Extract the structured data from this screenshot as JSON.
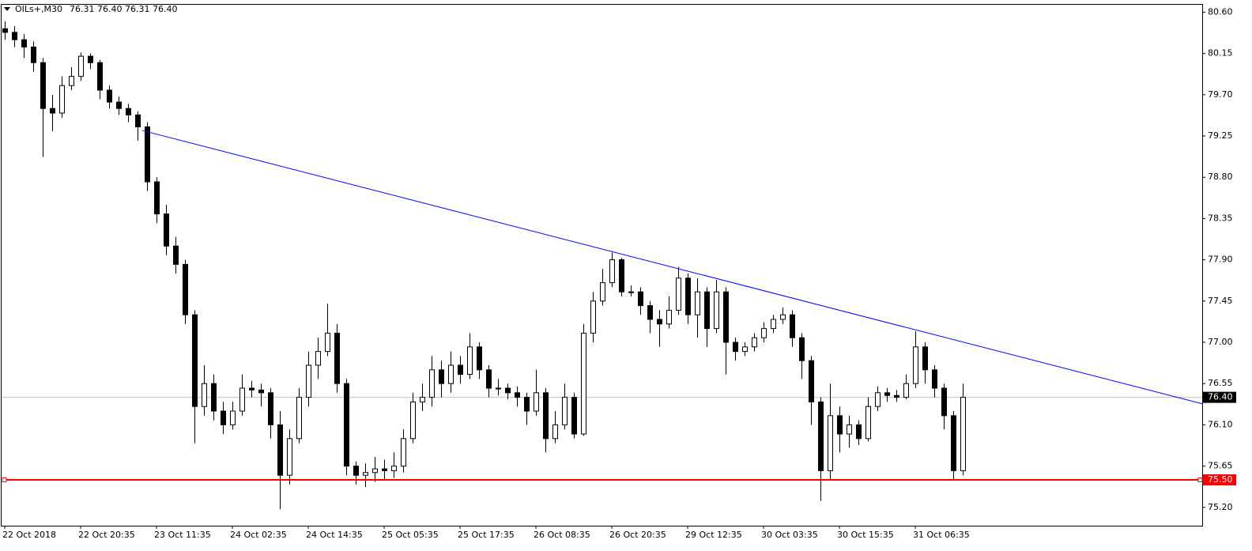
{
  "chart_data": {
    "type": "candlestick",
    "symbol": "OILs+,M30",
    "quote": "76.31 76.40 76.31 76.40",
    "open": [
      80.42,
      80.38,
      80.3,
      80.22,
      80.05,
      79.55,
      79.5,
      79.8,
      79.9,
      80.12,
      80.05,
      79.75,
      79.62,
      79.55,
      79.48,
      79.35,
      78.75,
      78.4,
      78.05,
      77.85,
      77.3,
      76.3,
      76.55,
      76.25,
      76.1,
      76.25,
      76.5,
      76.48,
      76.45,
      76.1,
      75.55,
      75.95,
      76.4,
      76.75,
      76.9,
      77.1,
      76.55,
      75.65,
      75.55,
      75.58,
      75.62,
      75.6,
      75.65,
      75.95,
      76.35,
      76.4,
      76.7,
      76.55,
      76.75,
      76.65,
      76.95,
      76.7,
      76.5,
      76.5,
      76.45,
      76.4,
      76.25,
      76.45,
      75.95,
      76.1,
      76.4,
      76.0,
      77.1,
      77.45,
      77.65,
      77.9,
      77.55,
      77.55,
      77.4,
      77.25,
      77.2,
      77.35,
      77.7,
      77.3,
      77.55,
      77.15,
      77.55,
      77.0,
      76.9,
      76.95,
      77.05,
      77.15,
      77.25,
      77.3,
      77.05,
      76.8,
      76.35,
      75.6,
      76.2,
      76.0,
      76.1,
      75.95,
      76.3,
      76.45,
      76.42,
      76.4,
      76.55,
      76.95,
      76.7,
      76.5,
      76.2,
      75.6
    ],
    "high": [
      80.5,
      80.45,
      80.36,
      80.28,
      80.1,
      79.7,
      79.9,
      80.0,
      80.16,
      80.15,
      80.08,
      79.8,
      79.68,
      79.6,
      79.52,
      79.4,
      78.8,
      78.5,
      78.15,
      77.9,
      77.35,
      76.75,
      76.65,
      76.35,
      76.35,
      76.65,
      76.58,
      76.55,
      76.5,
      76.25,
      76.05,
      76.5,
      76.9,
      77.05,
      77.42,
      77.2,
      76.6,
      75.7,
      75.68,
      75.75,
      75.72,
      75.8,
      76.05,
      76.45,
      76.55,
      76.85,
      76.8,
      76.9,
      76.85,
      77.1,
      77.0,
      76.75,
      76.6,
      76.55,
      76.52,
      76.45,
      76.7,
      76.5,
      76.25,
      76.55,
      76.45,
      77.2,
      77.55,
      77.8,
      77.98,
      77.92,
      77.62,
      77.6,
      77.45,
      77.35,
      77.5,
      77.82,
      77.75,
      77.7,
      77.6,
      77.68,
      77.6,
      77.05,
      77.0,
      77.1,
      77.22,
      77.3,
      77.38,
      77.35,
      77.1,
      76.85,
      76.4,
      76.55,
      76.3,
      76.2,
      76.15,
      76.4,
      76.52,
      76.5,
      76.48,
      76.65,
      77.12,
      77.0,
      76.75,
      76.55,
      76.25,
      76.55
    ],
    "low": [
      80.3,
      80.22,
      80.1,
      79.95,
      79.02,
      79.3,
      79.45,
      79.75,
      79.85,
      79.98,
      79.65,
      79.55,
      79.48,
      79.4,
      79.2,
      78.65,
      78.3,
      77.95,
      77.75,
      77.2,
      75.9,
      76.2,
      76.15,
      76.0,
      76.05,
      76.2,
      76.4,
      76.3,
      75.95,
      75.18,
      75.45,
      75.9,
      76.3,
      76.6,
      76.85,
      76.45,
      75.55,
      75.45,
      75.42,
      75.48,
      75.5,
      75.52,
      75.58,
      75.9,
      76.25,
      76.3,
      76.4,
      76.45,
      76.55,
      76.6,
      76.6,
      76.4,
      76.42,
      76.38,
      76.3,
      76.1,
      76.2,
      75.8,
      75.9,
      76.05,
      75.95,
      75.98,
      77.0,
      77.4,
      77.6,
      77.5,
      77.5,
      77.3,
      77.1,
      76.95,
      77.15,
      77.3,
      77.2,
      77.05,
      76.95,
      77.1,
      76.65,
      76.8,
      76.85,
      76.9,
      77.0,
      77.1,
      77.2,
      76.95,
      76.6,
      76.1,
      75.27,
      75.5,
      75.8,
      75.85,
      75.88,
      75.92,
      76.25,
      76.35,
      76.35,
      76.38,
      76.5,
      76.55,
      76.4,
      76.05,
      75.5,
      75.55
    ],
    "close": [
      80.38,
      80.3,
      80.22,
      80.05,
      79.55,
      79.5,
      79.8,
      79.9,
      80.12,
      80.05,
      79.75,
      79.62,
      79.55,
      79.48,
      79.35,
      78.75,
      78.4,
      78.05,
      77.85,
      77.3,
      76.3,
      76.55,
      76.25,
      76.1,
      76.25,
      76.5,
      76.48,
      76.45,
      76.1,
      75.55,
      75.95,
      76.4,
      76.75,
      76.9,
      77.1,
      76.55,
      75.65,
      75.55,
      75.58,
      75.62,
      75.6,
      75.65,
      75.95,
      76.35,
      76.4,
      76.7,
      76.55,
      76.75,
      76.65,
      76.95,
      76.7,
      76.5,
      76.5,
      76.45,
      76.4,
      76.25,
      76.45,
      75.95,
      76.1,
      76.4,
      76.0,
      77.1,
      77.45,
      77.65,
      77.9,
      77.55,
      77.55,
      77.4,
      77.25,
      77.2,
      77.35,
      77.7,
      77.3,
      77.55,
      77.15,
      77.55,
      77.0,
      76.9,
      76.95,
      77.05,
      77.15,
      77.25,
      77.3,
      77.05,
      76.8,
      76.35,
      75.6,
      76.2,
      76.0,
      76.1,
      75.95,
      76.3,
      76.45,
      76.42,
      76.4,
      76.55,
      76.95,
      76.7,
      76.5,
      76.2,
      75.6,
      76.4
    ],
    "up_color": "#ffffff",
    "down_color": "#000000",
    "outline_color": "#000000",
    "ylim": [
      75.0,
      80.69
    ],
    "yticks": [
      {
        "value": 80.6,
        "label": "80.60"
      },
      {
        "value": 80.15,
        "label": "80.15"
      },
      {
        "value": 79.7,
        "label": "79.70"
      },
      {
        "value": 79.25,
        "label": "79.25"
      },
      {
        "value": 78.8,
        "label": "78.80"
      },
      {
        "value": 78.35,
        "label": "78.35"
      },
      {
        "value": 77.9,
        "label": "77.90"
      },
      {
        "value": 77.45,
        "label": "77.45"
      },
      {
        "value": 77.0,
        "label": "77.00"
      },
      {
        "value": 76.55,
        "label": "76.55"
      },
      {
        "value": 76.1,
        "label": "76.10"
      },
      {
        "value": 75.65,
        "label": "75.65"
      },
      {
        "value": 75.2,
        "label": "75.20"
      }
    ],
    "xticks": [
      {
        "value": 0,
        "label": "22 Oct 2018"
      },
      {
        "value": 8,
        "label": "22 Oct 20:35"
      },
      {
        "value": 16,
        "label": "23 Oct 11:35"
      },
      {
        "value": 24,
        "label": "24 Oct 02:35"
      },
      {
        "value": 32,
        "label": "24 Oct 14:35"
      },
      {
        "value": 40,
        "label": "25 Oct 05:35"
      },
      {
        "value": 48,
        "label": "25 Oct 17:35"
      },
      {
        "value": 56,
        "label": "26 Oct 08:35"
      },
      {
        "value": 64,
        "label": "26 Oct 20:35"
      },
      {
        "value": 72,
        "label": "29 Oct 12:35"
      },
      {
        "value": 80,
        "label": "30 Oct 03:35"
      },
      {
        "value": 88,
        "label": "30 Oct 15:35"
      },
      {
        "value": 96,
        "label": "31 Oct 06:35"
      }
    ],
    "trendline": {
      "x": [
        14.5,
        126.25
      ],
      "y": [
        79.31,
        76.33
      ],
      "color": "#0000ff"
    },
    "support": {
      "value": 75.5,
      "label": "75.50",
      "color": "#ff0000"
    },
    "current": {
      "value": 76.4,
      "label": "76.40",
      "color": "#c0c0c0"
    }
  }
}
